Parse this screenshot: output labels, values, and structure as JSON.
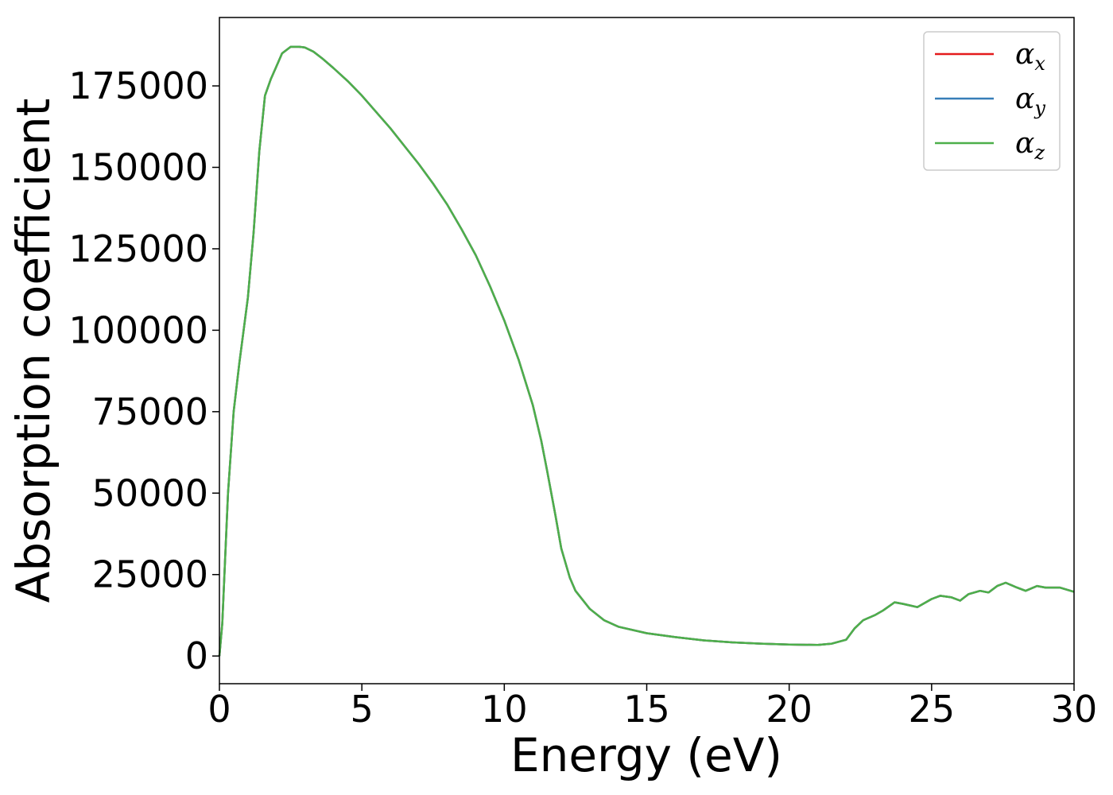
{
  "chart_data": {
    "type": "line",
    "title": "",
    "xlabel": "Energy (eV)",
    "ylabel": "Absorption coefficient",
    "xlim": [
      0,
      30
    ],
    "ylim": [
      -8500,
      196000
    ],
    "xticks": [
      0,
      5,
      10,
      15,
      20,
      25,
      30
    ],
    "xtick_labels": [
      "0",
      "5",
      "10",
      "15",
      "20",
      "25",
      "30"
    ],
    "yticks": [
      0,
      25000,
      50000,
      75000,
      100000,
      125000,
      150000,
      175000
    ],
    "ytick_labels": [
      "0",
      "25000",
      "50000",
      "75000",
      "100000",
      "125000",
      "150000",
      "175000"
    ],
    "grid": false,
    "legend_position": "top-right",
    "x": [
      0,
      0.1,
      0.2,
      0.3,
      0.5,
      0.7,
      1.0,
      1.2,
      1.4,
      1.6,
      1.8,
      2.0,
      2.2,
      2.5,
      2.8,
      3.0,
      3.3,
      3.6,
      4.0,
      4.5,
      5.0,
      5.5,
      6.0,
      6.5,
      7.0,
      7.5,
      8.0,
      8.5,
      9.0,
      9.5,
      10.0,
      10.5,
      11.0,
      11.3,
      11.5,
      11.8,
      12.0,
      12.3,
      12.5,
      13.0,
      13.5,
      14.0,
      15.0,
      16.0,
      17.0,
      18.0,
      19.0,
      20.0,
      21.0,
      21.5,
      22.0,
      22.3,
      22.6,
      23.0,
      23.3,
      23.7,
      24.0,
      24.5,
      25.0,
      25.3,
      25.7,
      26.0,
      26.3,
      26.7,
      27.0,
      27.3,
      27.6,
      28.0,
      28.3,
      28.7,
      29.0,
      29.5,
      30.0
    ],
    "series": [
      {
        "name": "α_x",
        "color": "#e41a1c",
        "values": [
          0,
          10000,
          30000,
          50000,
          75000,
          90000,
          110000,
          130000,
          155000,
          172000,
          177000,
          181000,
          185000,
          187000,
          187000,
          186800,
          185500,
          183500,
          180500,
          176500,
          172000,
          167000,
          162000,
          156500,
          151000,
          145000,
          138500,
          131000,
          123000,
          113500,
          103000,
          91000,
          77000,
          66000,
          57000,
          43000,
          33000,
          24000,
          20000,
          14500,
          11000,
          9000,
          7000,
          5800,
          4800,
          4200,
          3800,
          3500,
          3400,
          3800,
          5000,
          8500,
          11000,
          12500,
          14000,
          16500,
          16000,
          15000,
          17500,
          18500,
          18000,
          17000,
          19000,
          20000,
          19500,
          21500,
          22500,
          21000,
          20000,
          21500,
          21000,
          21000,
          19700
        ]
      },
      {
        "name": "α_y",
        "color": "#377eb8",
        "values": [
          0,
          10000,
          30000,
          50000,
          75000,
          90000,
          110000,
          130000,
          155000,
          172000,
          177000,
          181000,
          185000,
          187000,
          187000,
          186800,
          185500,
          183500,
          180500,
          176500,
          172000,
          167000,
          162000,
          156500,
          151000,
          145000,
          138500,
          131000,
          123000,
          113500,
          103000,
          91000,
          77000,
          66000,
          57000,
          43000,
          33000,
          24000,
          20000,
          14500,
          11000,
          9000,
          7000,
          5800,
          4800,
          4200,
          3800,
          3500,
          3400,
          3800,
          5000,
          8500,
          11000,
          12500,
          14000,
          16500,
          16000,
          15000,
          17500,
          18500,
          18000,
          17000,
          19000,
          20000,
          19500,
          21500,
          22500,
          21000,
          20000,
          21500,
          21000,
          21000,
          19700
        ]
      },
      {
        "name": "α_z",
        "color": "#4daf4a",
        "values": [
          0,
          10000,
          30000,
          50000,
          75000,
          90000,
          110000,
          130000,
          155000,
          172000,
          177000,
          181000,
          185000,
          187000,
          187000,
          186800,
          185500,
          183500,
          180500,
          176500,
          172000,
          167000,
          162000,
          156500,
          151000,
          145000,
          138500,
          131000,
          123000,
          113500,
          103000,
          91000,
          77000,
          66000,
          57000,
          43000,
          33000,
          24000,
          20000,
          14500,
          11000,
          9000,
          7000,
          5800,
          4800,
          4200,
          3800,
          3500,
          3400,
          3800,
          5000,
          8500,
          11000,
          12500,
          14000,
          16500,
          16000,
          15000,
          17500,
          18500,
          18000,
          17000,
          19000,
          20000,
          19500,
          21500,
          22500,
          21000,
          20000,
          21500,
          21000,
          21000,
          19700
        ]
      }
    ]
  }
}
